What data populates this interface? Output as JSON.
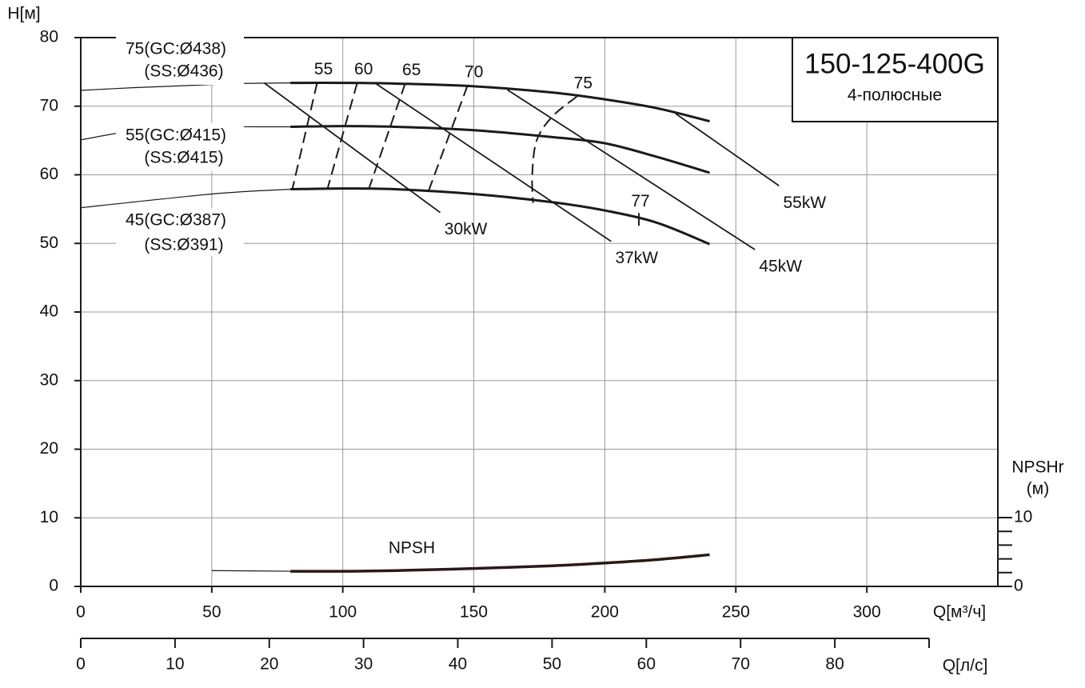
{
  "chart_data": {
    "type": "pump-curve",
    "y_label": "H[м]",
    "x_label": "Q[м³/ч]",
    "x2_label": "Q[л/с]",
    "y2_label": [
      "NPSHr",
      "(м)"
    ],
    "title": "150-125-400G",
    "subtitle": "4-полюсные",
    "xlim": [
      0,
      350
    ],
    "xticks": [
      0,
      50,
      100,
      150,
      200,
      250,
      300
    ],
    "ylim": [
      0,
      80
    ],
    "yticks": [
      0,
      10,
      20,
      30,
      40,
      50,
      60,
      70,
      80
    ],
    "x2lim": [
      0,
      90
    ],
    "x2ticks": [
      0,
      10,
      20,
      30,
      40,
      50,
      60,
      70,
      80
    ],
    "y2lim": [
      0,
      10
    ],
    "y2ticks": [
      0,
      10
    ],
    "y2minor_ticks": [
      2,
      4,
      6,
      8
    ],
    "grid": true,
    "color": "#1a1a1a",
    "impellers": [
      {
        "label": [
          "75(GC:Ø438)",
          "(SS:Ø436)"
        ],
        "extension_x": [
          0,
          20,
          40,
          60,
          80
        ],
        "extension_values": [
          72.3,
          72.7,
          73.0,
          73.3,
          73.4
        ],
        "x": [
          80,
          100,
          120,
          150,
          180,
          200,
          220,
          240
        ],
        "values": [
          73.4,
          73.4,
          73.3,
          72.9,
          72.0,
          71.0,
          69.7,
          67.8
        ]
      },
      {
        "label": [
          "55(GC:Ø415)",
          "(SS:Ø415)"
        ],
        "extension_x": [
          0,
          30,
          80
        ],
        "extension_values": [
          65.1,
          66.8,
          67.0
        ],
        "x": [
          80,
          100,
          120,
          150,
          180,
          200,
          220,
          240
        ],
        "values": [
          67.0,
          67.1,
          67.0,
          66.5,
          65.5,
          64.6,
          62.6,
          60.3
        ]
      },
      {
        "label": [
          "45(GC:Ø387)",
          "(SS:Ø391)"
        ],
        "extension_x": [
          0,
          50,
          80
        ],
        "extension_values": [
          55.2,
          57.2,
          57.9
        ],
        "x": [
          80,
          100,
          120,
          150,
          180,
          200,
          220,
          240
        ],
        "values": [
          57.9,
          58.0,
          57.9,
          57.2,
          56.0,
          54.8,
          53.0,
          49.9
        ]
      }
    ],
    "efficiency": [
      {
        "name": "55",
        "x": [
          90.2,
          80.8
        ],
        "values": [
          73.4,
          58.0
        ]
      },
      {
        "name": "60",
        "x": [
          105.5,
          94.2
        ],
        "values": [
          73.4,
          58.0
        ]
      },
      {
        "name": "65",
        "x": [
          123.8,
          110.0
        ],
        "values": [
          73.3,
          58.0
        ]
      },
      {
        "name": "70",
        "x": [
          147.6,
          132.6
        ],
        "values": [
          73.0,
          57.5
        ]
      },
      {
        "name": "75",
        "x": [
          189.3,
          180.0,
          174.0,
          172.3,
          172.6
        ],
        "values": [
          71.4,
          68.5,
          65.0,
          60.0,
          55.9
        ]
      }
    ],
    "efficiency_point": {
      "name": "77",
      "x": 213,
      "value": 53.5
    },
    "power": [
      {
        "name": "30kW",
        "x": [
          70,
          137.2
        ],
        "values": [
          73.4,
          54.5
        ]
      },
      {
        "name": "37kW",
        "x": [
          112.2,
          202.4
        ],
        "values": [
          73.4,
          50.3
        ]
      },
      {
        "name": "45kW",
        "x": [
          162.8,
          257.3
        ],
        "values": [
          72.4,
          49.1
        ]
      },
      {
        "name": "55kW",
        "x": [
          227.1,
          266.5
        ],
        "values": [
          68.9,
          58.4
        ]
      }
    ],
    "npsh": {
      "name": "NPSH",
      "axis": "y2",
      "extension_x": [
        50,
        80
      ],
      "extension_values": [
        2.3,
        2.2
      ],
      "x": [
        80,
        100,
        120,
        150,
        180,
        200,
        220,
        240
      ],
      "values": [
        2.2,
        2.2,
        2.3,
        2.6,
        3.0,
        3.4,
        3.9,
        4.6
      ]
    }
  }
}
